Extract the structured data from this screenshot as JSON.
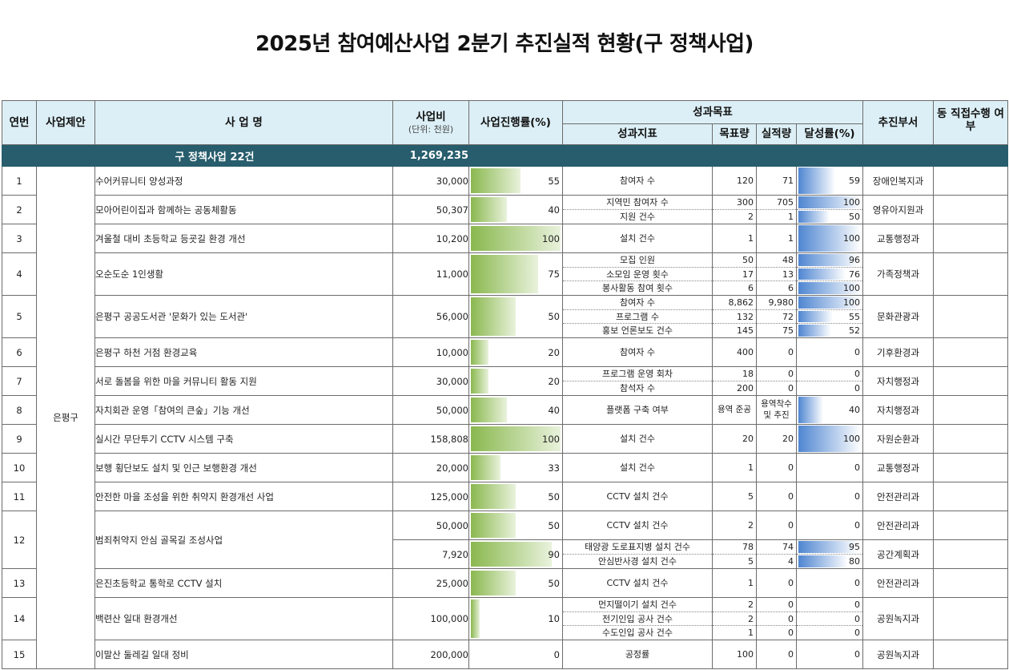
{
  "title": "2025년 참여예산사업 2분기 추진실적 현황(구 정책사업)",
  "headers": {
    "no": "연번",
    "proposal": "사업제안",
    "name": "사  업  명",
    "cost": "사업비",
    "cost_unit": "(단위: 천원)",
    "rate": "사업진행률(%)",
    "goal": "성과목표",
    "indicator": "성과지표",
    "target": "목표량",
    "actual": "실적량",
    "achieve": "달성률(%)",
    "dept": "추진부서",
    "direct": "동 직접수행 여부"
  },
  "total": {
    "label": "구 정책사업 22건",
    "cost": "1,269,235"
  },
  "proposal_value": "은평구",
  "rows": [
    {
      "no": "1",
      "name": "수어커뮤니티 양성과정",
      "cost": "30,000",
      "rate": 55,
      "dept": "장애인복지과",
      "indicators": [
        {
          "label": "참여자 수",
          "target": "120",
          "actual": "71",
          "ach": 59
        }
      ]
    },
    {
      "no": "2",
      "name": "모아어린이집과 함께하는 공동체활동",
      "cost": "50,307",
      "rate": 40,
      "dept": "영유아지원과",
      "indicators": [
        {
          "label": "지역민 참여자 수",
          "target": "300",
          "actual": "705",
          "ach": 100
        },
        {
          "label": "지원 건수",
          "target": "2",
          "actual": "1",
          "ach": 50
        }
      ]
    },
    {
      "no": "3",
      "name": "겨울철 대비 초등학교 등굣길 환경 개선",
      "cost": "10,200",
      "rate": 100,
      "dept": "교통행정과",
      "indicators": [
        {
          "label": "설치 건수",
          "target": "1",
          "actual": "1",
          "ach": 100
        }
      ]
    },
    {
      "no": "4",
      "name": "오순도순 1인생활",
      "cost": "11,000",
      "rate": 75,
      "dept": "가족정책과",
      "indicators": [
        {
          "label": "모집 인원",
          "target": "50",
          "actual": "48",
          "ach": 96
        },
        {
          "label": "소모임 운영 횟수",
          "target": "17",
          "actual": "13",
          "ach": 76
        },
        {
          "label": "봉사활동 참여 횟수",
          "target": "6",
          "actual": "6",
          "ach": 100
        }
      ]
    },
    {
      "no": "5",
      "name": "은평구 공공도서관 '문화가 있는 도서관'",
      "cost": "56,000",
      "rate": 50,
      "dept": "문화관광과",
      "indicators": [
        {
          "label": "참여자 수",
          "target": "8,862",
          "actual": "9,980",
          "ach": 100
        },
        {
          "label": "프로그램 수",
          "target": "132",
          "actual": "72",
          "ach": 55
        },
        {
          "label": "홍보 언론보도 건수",
          "target": "145",
          "actual": "75",
          "ach": 52
        }
      ]
    },
    {
      "no": "6",
      "name": "은평구 하천 거점 환경교육",
      "cost": "10,000",
      "rate": 20,
      "dept": "기후환경과",
      "indicators": [
        {
          "label": "참여자 수",
          "target": "400",
          "actual": "0",
          "ach": 0
        }
      ]
    },
    {
      "no": "7",
      "name": "서로 돌봄을 위한 마을 커뮤니티 활동 지원",
      "cost": "30,000",
      "rate": 20,
      "dept": "자치행정과",
      "indicators": [
        {
          "label": "프로그램 운영 회차",
          "target": "18",
          "actual": "0",
          "ach": 0
        },
        {
          "label": "참석자 수",
          "target": "200",
          "actual": "0",
          "ach": 0
        }
      ]
    },
    {
      "no": "8",
      "name": "자치회관 운영「참여의 큰숲」기능 개선",
      "cost": "50,000",
      "rate": 40,
      "dept": "자치행정과",
      "indicators": [
        {
          "label": "플랫폼 구축 여부",
          "target": "용역 준공",
          "actual": "용역착수 및 추진",
          "ach": 40
        }
      ]
    },
    {
      "no": "9",
      "name": "실시간 무단투기 CCTV 시스템 구축",
      "cost": "158,808",
      "rate": 100,
      "dept": "자원순환과",
      "indicators": [
        {
          "label": "설치 건수",
          "target": "20",
          "actual": "20",
          "ach": 100
        }
      ]
    },
    {
      "no": "10",
      "name": "보행 횡단보도 설치 및 인근 보행환경 개선",
      "cost": "20,000",
      "rate": 33,
      "dept": "교통행정과",
      "indicators": [
        {
          "label": "설치 건수",
          "target": "1",
          "actual": "0",
          "ach": 0
        }
      ]
    },
    {
      "no": "11",
      "name": "안전한 마을 조성을 위한 취약지 환경개선 사업",
      "cost": "125,000",
      "rate": 50,
      "dept": "안전관리과",
      "indicators": [
        {
          "label": "CCTV 설치 건수",
          "target": "5",
          "actual": "0",
          "ach": 0
        }
      ]
    },
    {
      "no": "12",
      "name": "범죄취약지 안심 골목길 조성사업",
      "cost": "50,000",
      "rate": 50,
      "dept": "안전관리과",
      "indicators": [
        {
          "label": "CCTV 설치 건수",
          "target": "2",
          "actual": "0",
          "ach": 0
        }
      ]
    },
    {
      "no": "",
      "name": "",
      "cost": "7,920",
      "rate": 90,
      "dept": "공간계획과",
      "indicators": [
        {
          "label": "태양광 도로표지병 설치 건수",
          "target": "78",
          "actual": "74",
          "ach": 95
        },
        {
          "label": "안심반사경 설치 건수",
          "target": "5",
          "actual": "4",
          "ach": 80
        }
      ]
    },
    {
      "no": "13",
      "name": "은진초등학교 통학로 CCTV 설치",
      "cost": "25,000",
      "rate": 50,
      "dept": "안전관리과",
      "indicators": [
        {
          "label": "CCTV 설치 건수",
          "target": "1",
          "actual": "0",
          "ach": 0
        }
      ]
    },
    {
      "no": "14",
      "name": "백련산 일대 환경개선",
      "cost": "100,000",
      "rate": 10,
      "dept": "공원녹지과",
      "indicators": [
        {
          "label": "먼지떨이기 설치 건수",
          "target": "2",
          "actual": "0",
          "ach": 0
        },
        {
          "label": "전기인입 공사 건수",
          "target": "2",
          "actual": "0",
          "ach": 0
        },
        {
          "label": "수도인입 공사 건수",
          "target": "1",
          "actual": "0",
          "ach": 0
        }
      ]
    },
    {
      "no": "15",
      "name": "이말산 둘레길 일대 정비",
      "cost": "200,000",
      "rate": 0,
      "dept": "공원녹지과",
      "indicators": [
        {
          "label": "공정률",
          "target": "100",
          "actual": "0",
          "ach": 0
        }
      ]
    }
  ]
}
